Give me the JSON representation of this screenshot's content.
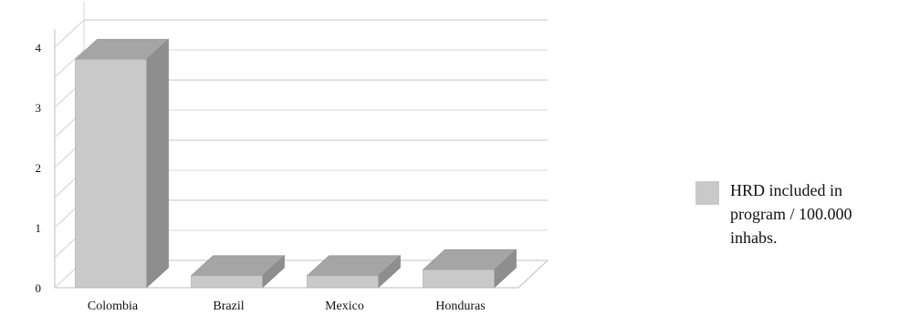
{
  "chart_data": {
    "type": "bar",
    "categories": [
      "Colombia",
      "Brazil",
      "Mexico",
      "Honduras"
    ],
    "series": [
      {
        "name": "HRD included in\nprogram / 100.000\ninhabs.",
        "values": [
          3.8,
          0.2,
          0.2,
          0.3
        ]
      }
    ],
    "yticks": [
      "0",
      "1",
      "2",
      "3",
      "4"
    ],
    "ylim": [
      0,
      4.3
    ],
    "legend_position": "right",
    "grid": true,
    "colors": {
      "bar_front": "#c9c9c9",
      "bar_top": "#a5a5a5",
      "bar_side": "#8e8e8e",
      "grid": "#cfcfcf"
    }
  }
}
